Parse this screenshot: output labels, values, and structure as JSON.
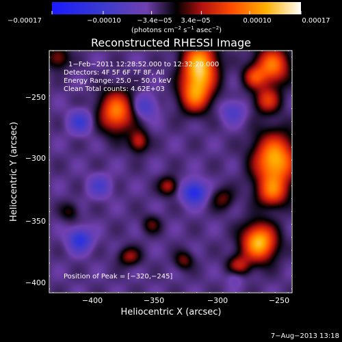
{
  "chart_data": {
    "type": "heatmap",
    "title": "Reconstructed RHESSI Image",
    "xlabel": "Heliocentric X (arcsec)",
    "ylabel": "Heliocentric Y (arcsec)",
    "x_range": [
      -433,
      -247
    ],
    "y_range": [
      -413,
      -225
    ],
    "x_ticks": [
      -400,
      -350,
      -300,
      -250
    ],
    "y_ticks": [
      -250,
      -300,
      -350,
      -400
    ],
    "x_tick_labels": [
      "−400",
      "−350",
      "−300",
      "−250"
    ],
    "y_tick_labels": [
      "−250",
      "−300",
      "−350",
      "−400"
    ],
    "colorbar": {
      "range": [
        -0.00017,
        0.00017
      ],
      "tick_labels": [
        "−0.00017",
        "−0.00010",
        "−3.4e−05",
        "3.4e−05",
        "0.00010",
        "0.00017"
      ],
      "tick_values": [
        -0.00017,
        -0.0001,
        -3.4e-05,
        3.4e-05,
        0.0001,
        0.00017
      ],
      "unit_label_main": "(photons cm",
      "unit_sup1": "−2",
      "unit_mid": " s",
      "unit_sup2": "−1",
      "unit_end": " asec",
      "unit_sup3": "−2",
      "unit_close": ")"
    },
    "annotations": {
      "line1": "1−Feb−2011 12:28:52.000 to 12:32:20.000",
      "line2": "Detectors: 4F 5F 6F 7F 8F, All",
      "line3": "Energy Range: 25.0 − 50.0 keV",
      "line4": "Clean    Total counts: 4.62E+03",
      "peak": "Position of Peak = [−320,−245]"
    },
    "peak_position": [
      -320,
      -245
    ],
    "sources": [
      {
        "x": -318,
        "y": -238,
        "sx": 9,
        "sy": 14,
        "amp": 1.0
      },
      {
        "x": -322,
        "y": -260,
        "sx": 8,
        "sy": 9,
        "amp": 0.55
      },
      {
        "x": -382,
        "y": -272,
        "sx": 9,
        "sy": 11,
        "amp": 0.75
      },
      {
        "x": -262,
        "y": -236,
        "sx": 9,
        "sy": 10,
        "amp": 0.72
      },
      {
        "x": -276,
        "y": -245,
        "sx": 6,
        "sy": 6,
        "amp": 0.45
      },
      {
        "x": -266,
        "y": -263,
        "sx": 7,
        "sy": 7,
        "amp": 0.5
      },
      {
        "x": -260,
        "y": -310,
        "sx": 11,
        "sy": 14,
        "amp": 0.92
      },
      {
        "x": -262,
        "y": -335,
        "sx": 8,
        "sy": 8,
        "amp": 0.55
      },
      {
        "x": -272,
        "y": -374,
        "sx": 9,
        "sy": 10,
        "amp": 0.95
      },
      {
        "x": -288,
        "y": -393,
        "sx": 6,
        "sy": 6,
        "amp": 0.45
      },
      {
        "x": -365,
        "y": -295,
        "sx": 5,
        "sy": 6,
        "amp": 0.45
      },
      {
        "x": -342,
        "y": -330,
        "sx": 5,
        "sy": 5,
        "amp": 0.4
      },
      {
        "x": -372,
        "y": -385,
        "sx": 6,
        "sy": 5,
        "amp": 0.35
      },
      {
        "x": -330,
        "y": -388,
        "sx": 5,
        "sy": 5,
        "amp": 0.3
      },
      {
        "x": -427,
        "y": -230,
        "sx": 6,
        "sy": 6,
        "amp": 0.35
      },
      {
        "x": -300,
        "y": -340,
        "sx": 6,
        "sy": 6,
        "amp": 0.28
      },
      {
        "x": -355,
        "y": -360,
        "sx": 5,
        "sy": 5,
        "amp": 0.25
      },
      {
        "x": -418,
        "y": -350,
        "sx": 5,
        "sy": 5,
        "amp": 0.22
      },
      {
        "x": -410,
        "y": -280,
        "sx": 6,
        "sy": 6,
        "amp": -0.4
      },
      {
        "x": -322,
        "y": -335,
        "sx": 6,
        "sy": 6,
        "amp": -0.65
      },
      {
        "x": -410,
        "y": -372,
        "sx": 6,
        "sy": 6,
        "amp": -0.55
      },
      {
        "x": -360,
        "y": -268,
        "sx": 6,
        "sy": 6,
        "amp": -0.35
      },
      {
        "x": -292,
        "y": -272,
        "sx": 6,
        "sy": 6,
        "amp": -0.3
      },
      {
        "x": -395,
        "y": -330,
        "sx": 6,
        "sy": 6,
        "amp": -0.3
      },
      {
        "x": -290,
        "y": -400,
        "sx": 5,
        "sy": 5,
        "amp": -0.25
      }
    ]
  },
  "footer": {
    "timestamp": "7−Aug−2013 13:18"
  },
  "colors": {
    "background": "#000000",
    "foreground": "#ffffff"
  }
}
